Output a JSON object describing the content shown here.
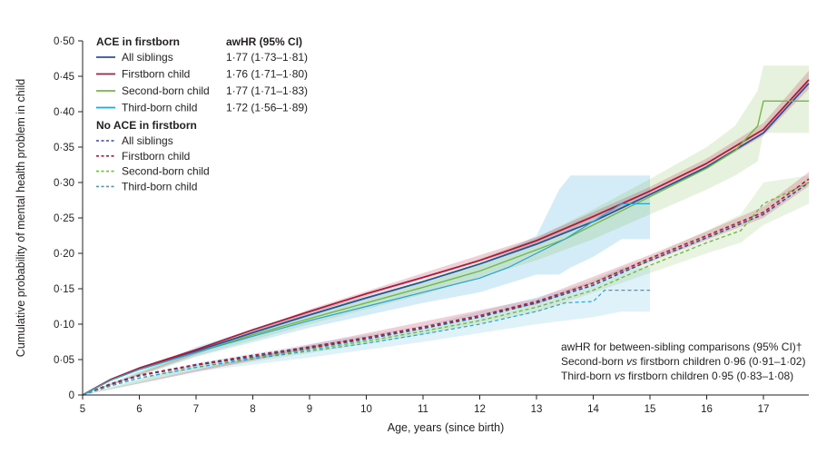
{
  "chart_data": {
    "type": "line",
    "xlabel": "Age, years (since birth)",
    "ylabel": "Cumulative probability of mental health problem in child",
    "xlim": [
      5,
      17.8
    ],
    "ylim": [
      0,
      0.5
    ],
    "x_ticks": [
      5,
      6,
      7,
      8,
      9,
      10,
      11,
      12,
      13,
      14,
      15,
      16,
      17
    ],
    "x_tick_labels": [
      "5",
      "6",
      "7",
      "8",
      "9",
      "10",
      "11",
      "12",
      "13",
      "14",
      "15",
      "16",
      "17"
    ],
    "y_ticks": [
      0,
      0.05,
      0.1,
      0.15,
      0.2,
      0.25,
      0.3,
      0.35,
      0.4,
      0.45,
      0.5
    ],
    "y_tick_labels": [
      "0",
      "0·05",
      "0·10",
      "0·15",
      "0·20",
      "0·25",
      "0·30",
      "0·35",
      "0·40",
      "0·45",
      "0·50"
    ],
    "legend": {
      "ace_heading": "ACE in firstborn",
      "hr_heading": "awHR (95% CI)",
      "no_ace_heading": "No ACE in firstborn",
      "ace_items": [
        {
          "label": "All siblings",
          "hr": "1·77 (1·73–1·81)",
          "color": "#2e4f9b"
        },
        {
          "label": "Firstborn child",
          "hr": "1·76 (1·71–1·80)",
          "color": "#b5163a"
        },
        {
          "label": "Second-born child",
          "hr": "1·77 (1·71–1·83)",
          "color": "#72b944"
        },
        {
          "label": "Third-born child",
          "hr": "1·72 (1·56–1·89)",
          "color": "#2aa0d8"
        }
      ],
      "no_ace_items": [
        {
          "label": "All siblings",
          "color": "#2e4f9b"
        },
        {
          "label": "Firstborn child",
          "color": "#b5163a"
        },
        {
          "label": "Second-born child",
          "color": "#72b944"
        },
        {
          "label": "Third-born child",
          "color": "#2aa0d8"
        }
      ]
    },
    "annotation": {
      "heading": "awHR for between-sibling comparisons (95% CI)†",
      "line1_pre": "Second-born ",
      "line1_vs": "vs",
      "line1_post": " firstborn children 0·96 (0·91–1·02)",
      "line2_pre": "Third-born ",
      "line2_vs": "vs",
      "line2_post": " firstborn children 0·95 (0·83–1·08)"
    },
    "series": [
      {
        "name": "ACE – All siblings",
        "color": "#2e4f9b",
        "dashed": false,
        "width": 1.8,
        "x": [
          5,
          5.5,
          6,
          7,
          8,
          9,
          10,
          11,
          12,
          13,
          14,
          15,
          16,
          17,
          17.8
        ],
        "y": [
          0,
          0.022,
          0.038,
          0.062,
          0.088,
          0.113,
          0.137,
          0.16,
          0.185,
          0.213,
          0.245,
          0.283,
          0.322,
          0.37,
          0.44
        ]
      },
      {
        "name": "ACE – Firstborn child",
        "color": "#b5163a",
        "dashed": false,
        "width": 1.8,
        "x": [
          5,
          5.5,
          6,
          7,
          8,
          9,
          10,
          11,
          12,
          13,
          14,
          15,
          16,
          17,
          17.8
        ],
        "y": [
          0,
          0.022,
          0.038,
          0.064,
          0.092,
          0.118,
          0.143,
          0.166,
          0.19,
          0.218,
          0.252,
          0.288,
          0.327,
          0.375,
          0.445
        ]
      },
      {
        "name": "ACE – Second-born child",
        "color": "#72b944",
        "dashed": false,
        "width": 1.4,
        "x": [
          5,
          5.5,
          6,
          7,
          8,
          9,
          10,
          11,
          12,
          13,
          13.5,
          14,
          15,
          16,
          16.5,
          16.9,
          17,
          17.8
        ],
        "y": [
          0,
          0.021,
          0.036,
          0.06,
          0.085,
          0.108,
          0.13,
          0.152,
          0.175,
          0.205,
          0.22,
          0.24,
          0.28,
          0.32,
          0.345,
          0.38,
          0.415,
          0.415
        ]
      },
      {
        "name": "ACE – Third-born child",
        "color": "#2aa0d8",
        "dashed": false,
        "width": 1.2,
        "x": [
          5,
          5.5,
          6,
          7,
          8,
          9,
          10,
          11,
          12,
          12.5,
          13,
          13.5,
          14,
          14.5,
          15
        ],
        "y": [
          0,
          0.021,
          0.036,
          0.06,
          0.083,
          0.105,
          0.125,
          0.145,
          0.165,
          0.18,
          0.2,
          0.22,
          0.245,
          0.27,
          0.27
        ]
      },
      {
        "name": "No ACE – All siblings",
        "color": "#2e4f9b",
        "dashed": true,
        "width": 1.6,
        "x": [
          5,
          5.5,
          6,
          7,
          8,
          9,
          10,
          11,
          12,
          13,
          14,
          15,
          16,
          17,
          17.8
        ],
        "y": [
          0,
          0.015,
          0.027,
          0.042,
          0.054,
          0.066,
          0.079,
          0.094,
          0.11,
          0.13,
          0.155,
          0.19,
          0.222,
          0.255,
          0.3
        ]
      },
      {
        "name": "No ACE – Firstborn child",
        "color": "#b5163a",
        "dashed": true,
        "width": 1.6,
        "x": [
          5,
          5.5,
          6,
          7,
          8,
          9,
          10,
          11,
          12,
          13,
          14,
          15,
          16,
          17,
          17.8
        ],
        "y": [
          0,
          0.016,
          0.028,
          0.043,
          0.056,
          0.068,
          0.081,
          0.096,
          0.112,
          0.132,
          0.158,
          0.193,
          0.225,
          0.258,
          0.305
        ]
      },
      {
        "name": "No ACE – Second-born child",
        "color": "#72b944",
        "dashed": true,
        "width": 1.4,
        "x": [
          5,
          5.5,
          6,
          7,
          8,
          9,
          10,
          11,
          12,
          13,
          14,
          15,
          16,
          16.6,
          17,
          17.8
        ],
        "y": [
          0,
          0.013,
          0.024,
          0.039,
          0.052,
          0.064,
          0.076,
          0.09,
          0.105,
          0.124,
          0.148,
          0.183,
          0.215,
          0.232,
          0.27,
          0.3
        ]
      },
      {
        "name": "No ACE – Third-born child",
        "color": "#2aa0d8",
        "dashed": true,
        "width": 1.2,
        "x": [
          5,
          5.5,
          6,
          7,
          8,
          9,
          10,
          11,
          12,
          13,
          13.5,
          14,
          14.2,
          15
        ],
        "y": [
          0,
          0.013,
          0.024,
          0.039,
          0.051,
          0.062,
          0.073,
          0.086,
          0.1,
          0.118,
          0.13,
          0.132,
          0.148,
          0.148
        ]
      }
    ],
    "bands": [
      {
        "name": "ACE – Third-born child CI",
        "color": "#2aa0d8",
        "opacity": 0.2,
        "x": [
          5,
          7,
          9,
          11,
          12,
          13,
          13.4,
          13.6,
          14,
          14.5,
          15
        ],
        "lower": [
          0,
          0.054,
          0.095,
          0.13,
          0.145,
          0.17,
          0.17,
          0.18,
          0.195,
          0.22,
          0.22
        ],
        "upper": [
          0,
          0.068,
          0.118,
          0.16,
          0.185,
          0.225,
          0.29,
          0.31,
          0.31,
          0.31,
          0.31
        ]
      },
      {
        "name": "ACE – Second-born child CI",
        "color": "#72b944",
        "opacity": 0.18,
        "x": [
          5,
          7,
          9,
          11,
          13,
          14,
          15,
          16,
          16.5,
          16.9,
          17,
          17.8
        ],
        "lower": [
          0,
          0.055,
          0.1,
          0.142,
          0.19,
          0.22,
          0.255,
          0.29,
          0.31,
          0.33,
          0.37,
          0.37
        ],
        "upper": [
          0,
          0.065,
          0.117,
          0.163,
          0.222,
          0.262,
          0.305,
          0.35,
          0.38,
          0.43,
          0.465,
          0.465
        ]
      },
      {
        "name": "No ACE – Third-born child CI",
        "color": "#2aa0d8",
        "opacity": 0.15,
        "x": [
          5,
          7,
          9,
          11,
          13,
          14,
          14.5,
          15
        ],
        "lower": [
          0,
          0.033,
          0.053,
          0.075,
          0.1,
          0.11,
          0.118,
          0.118
        ],
        "upper": [
          0,
          0.045,
          0.072,
          0.098,
          0.138,
          0.16,
          0.18,
          0.18
        ]
      },
      {
        "name": "No ACE – Second-born child CI",
        "color": "#72b944",
        "opacity": 0.16,
        "x": [
          5,
          7,
          9,
          11,
          13,
          15,
          16,
          16.6,
          17,
          17.8
        ],
        "lower": [
          0,
          0.035,
          0.059,
          0.085,
          0.117,
          0.172,
          0.2,
          0.215,
          0.24,
          0.27
        ],
        "upper": [
          0,
          0.043,
          0.069,
          0.095,
          0.131,
          0.195,
          0.232,
          0.255,
          0.3,
          0.31
        ]
      },
      {
        "name": "ACE – Firstborn child CI",
        "color": "#b5163a",
        "opacity": 0.2,
        "x": [
          5,
          9,
          13,
          15,
          16,
          17,
          17.8
        ],
        "lower": [
          0,
          0.115,
          0.213,
          0.282,
          0.32,
          0.366,
          0.432
        ],
        "upper": [
          0,
          0.121,
          0.223,
          0.294,
          0.334,
          0.384,
          0.458
        ]
      },
      {
        "name": "No ACE – Firstborn child CI",
        "color": "#b5163a",
        "opacity": 0.2,
        "x": [
          5,
          9,
          13,
          15,
          16,
          17,
          17.8
        ],
        "lower": [
          0,
          0.065,
          0.128,
          0.188,
          0.219,
          0.25,
          0.295
        ],
        "upper": [
          0,
          0.071,
          0.136,
          0.198,
          0.231,
          0.266,
          0.315
        ]
      }
    ]
  }
}
